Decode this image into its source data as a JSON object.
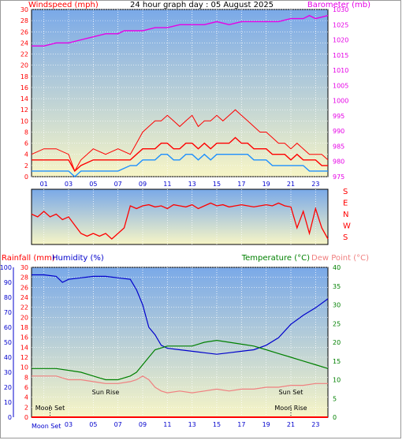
{
  "title": "24 hour graph day : 05 August 2025",
  "colors": {
    "wind": "#ff0000",
    "gust": "#ff0000",
    "windAvg": "#1e90ff",
    "baro": "#e600e6",
    "dir": "#ff0000",
    "rain": "#ff0000",
    "humidity": "#0000cc",
    "temp": "#008000",
    "dew": "#f08080",
    "frame": "#000000",
    "bgTop": "#7aa9e8",
    "bgBottom": "#f7f5c6"
  },
  "hour_labels": [
    "01",
    "03",
    "05",
    "07",
    "09",
    "11",
    "13",
    "15",
    "17",
    "19",
    "21",
    "23"
  ],
  "chart_data": [
    {
      "type": "line",
      "name": "wind-baro",
      "title": "24 hour graph day : 05 August 2025",
      "ylabel": "Windspeed (mph)",
      "y2label": "Barometer (mb)",
      "ylim": [
        0,
        30
      ],
      "y2lim": [
        975,
        1030
      ],
      "yticks": [
        0,
        2,
        4,
        6,
        8,
        10,
        12,
        14,
        16,
        18,
        20,
        22,
        24,
        26,
        28,
        30
      ],
      "y2ticks": [
        975,
        980,
        985,
        990,
        995,
        1000,
        1005,
        1010,
        1015,
        1020,
        1025,
        1030
      ],
      "xlim": [
        0,
        24
      ],
      "series": [
        {
          "key": "gust",
          "x": [
            0,
            1,
            2,
            3,
            3.5,
            4,
            5,
            6,
            7,
            8,
            8.5,
            9,
            9.5,
            10,
            10.5,
            11,
            11.5,
            12,
            12.5,
            13,
            13.5,
            14,
            14.5,
            15,
            15.5,
            16,
            16.5,
            17,
            17.5,
            18,
            18.5,
            19,
            19.5,
            20,
            20.5,
            21,
            21.5,
            22,
            22.5,
            23,
            23.5,
            24
          ],
          "y": [
            4,
            5,
            5,
            4,
            1,
            3,
            5,
            4,
            5,
            4,
            6,
            8,
            9,
            10,
            10,
            11,
            10,
            9,
            10,
            11,
            9,
            10,
            10,
            11,
            10,
            11,
            12,
            11,
            10,
            9,
            8,
            8,
            7,
            6,
            6,
            5,
            6,
            5,
            4,
            4,
            4,
            3
          ]
        },
        {
          "key": "wind",
          "x": [
            0,
            1,
            2,
            3,
            3.5,
            4,
            5,
            6,
            7,
            8,
            8.5,
            9,
            9.5,
            10,
            10.5,
            11,
            11.5,
            12,
            12.5,
            13,
            13.5,
            14,
            14.5,
            15,
            15.5,
            16,
            16.5,
            17,
            17.5,
            18,
            18.5,
            19,
            19.5,
            20,
            20.5,
            21,
            21.5,
            22,
            22.5,
            23,
            23.5,
            24
          ],
          "y": [
            3,
            3,
            3,
            3,
            1,
            2,
            3,
            3,
            3,
            3,
            4,
            5,
            5,
            5,
            6,
            6,
            5,
            5,
            6,
            6,
            5,
            6,
            5,
            6,
            6,
            6,
            7,
            6,
            6,
            5,
            5,
            5,
            4,
            4,
            4,
            3,
            4,
            3,
            3,
            3,
            2,
            2
          ]
        },
        {
          "key": "windAvg",
          "x": [
            0,
            1,
            2,
            3,
            3.5,
            4,
            5,
            6,
            7,
            8,
            8.5,
            9,
            9.5,
            10,
            10.5,
            11,
            11.5,
            12,
            12.5,
            13,
            13.5,
            14,
            14.5,
            15,
            15.5,
            16,
            16.5,
            17,
            17.5,
            18,
            18.5,
            19,
            19.5,
            20,
            20.5,
            21,
            21.5,
            22,
            22.5,
            23,
            23.5,
            24
          ],
          "y": [
            1,
            1,
            1,
            1,
            0,
            1,
            1,
            1,
            1,
            2,
            2,
            3,
            3,
            3,
            4,
            4,
            3,
            3,
            4,
            4,
            3,
            4,
            3,
            4,
            4,
            4,
            4,
            4,
            4,
            3,
            3,
            3,
            2,
            2,
            2,
            2,
            2,
            2,
            1,
            1,
            1,
            1
          ]
        },
        {
          "key": "baro",
          "axis": "y2",
          "x": [
            0,
            1,
            2,
            3,
            4,
            5,
            6,
            7,
            7.5,
            8,
            9,
            10,
            11,
            12,
            13,
            14,
            15,
            16,
            17,
            18,
            19,
            20,
            21,
            22,
            22.5,
            23,
            24
          ],
          "y": [
            1018,
            1018,
            1019,
            1019,
            1020,
            1021,
            1022,
            1022,
            1023,
            1023,
            1023,
            1024,
            1024,
            1025,
            1025,
            1025,
            1026,
            1025,
            1026,
            1026,
            1026,
            1026,
            1027,
            1027,
            1028,
            1027,
            1028
          ]
        }
      ]
    },
    {
      "type": "line",
      "name": "wind-direction",
      "ylabels": [
        "S",
        "E",
        "N",
        "W",
        "S"
      ],
      "xlim": [
        0,
        24
      ],
      "series": [
        {
          "key": "dir",
          "x": [
            0,
            0.5,
            1,
            1.5,
            2,
            2.5,
            3,
            3.5,
            4,
            4.5,
            5,
            5.5,
            6,
            6.5,
            7,
            7.5,
            8,
            8.5,
            9,
            9.5,
            10,
            10.5,
            11,
            11.5,
            12,
            12.5,
            13,
            13.5,
            14,
            14.5,
            15,
            15.5,
            16,
            16.5,
            17,
            17.5,
            18,
            18.5,
            19,
            19.5,
            20,
            20.5,
            21,
            21.5,
            22,
            22.5,
            23,
            23.5,
            24
          ],
          "y": [
            0.55,
            0.5,
            0.6,
            0.5,
            0.55,
            0.45,
            0.5,
            0.35,
            0.2,
            0.15,
            0.2,
            0.15,
            0.2,
            0.1,
            0.2,
            0.3,
            0.7,
            0.65,
            0.7,
            0.72,
            0.68,
            0.7,
            0.65,
            0.72,
            0.7,
            0.68,
            0.72,
            0.65,
            0.7,
            0.75,
            0.7,
            0.72,
            0.68,
            0.7,
            0.72,
            0.7,
            0.68,
            0.7,
            0.72,
            0.7,
            0.75,
            0.7,
            0.68,
            0.3,
            0.6,
            0.2,
            0.65,
            0.3,
            0.1
          ]
        }
      ]
    },
    {
      "type": "line",
      "name": "rain-humidity-temp",
      "ylabel": "Rainfall (mm)",
      "y2label": "Humidity (%)",
      "y3label": "Temperature (°C)",
      "y4label": "Dew Point (°C)",
      "ylim": [
        0,
        30
      ],
      "y2lim": [
        0,
        100
      ],
      "y3lim": [
        0,
        40
      ],
      "yticks": [
        0,
        2,
        4,
        6,
        8,
        10,
        12,
        14,
        16,
        18,
        20,
        22,
        24,
        26,
        28,
        30
      ],
      "y2ticks": [
        0,
        10,
        20,
        30,
        40,
        50,
        60,
        70,
        80,
        90,
        100
      ],
      "y3ticks": [
        0,
        5,
        10,
        15,
        20,
        25,
        30,
        35,
        40
      ],
      "xlim": [
        0,
        24
      ],
      "series": [
        {
          "key": "humidity",
          "axis": "y2",
          "x": [
            0,
            1,
            2,
            2.5,
            3,
            4,
            5,
            6,
            7,
            8,
            8.5,
            9,
            9.5,
            10,
            10.5,
            11,
            12,
            13,
            14,
            15,
            16,
            17,
            18,
            19,
            20,
            21,
            22,
            23,
            24
          ],
          "y": [
            95,
            95,
            94,
            90,
            92,
            93,
            94,
            94,
            93,
            92,
            85,
            75,
            60,
            55,
            48,
            46,
            45,
            44,
            43,
            42,
            43,
            44,
            45,
            48,
            53,
            62,
            68,
            73,
            79
          ]
        },
        {
          "key": "temp",
          "axis": "y3",
          "x": [
            0,
            1,
            2,
            3,
            4,
            5,
            6,
            7,
            8,
            8.5,
            9,
            9.5,
            10,
            11,
            12,
            13,
            14,
            15,
            16,
            17,
            18,
            19,
            20,
            21,
            22,
            23,
            24
          ],
          "y": [
            13,
            13,
            13,
            12.5,
            12,
            11,
            10,
            10,
            11,
            12,
            14,
            16,
            18,
            19,
            19,
            19,
            20,
            20.5,
            20,
            19.5,
            19,
            18,
            17,
            16,
            15,
            14,
            13
          ]
        },
        {
          "key": "dew",
          "axis": "y3",
          "x": [
            0,
            1,
            2,
            3,
            4,
            5,
            6,
            7,
            8,
            8.5,
            9,
            9.5,
            10,
            10.5,
            11,
            12,
            13,
            14,
            15,
            16,
            17,
            18,
            19,
            20,
            21,
            22,
            23,
            24
          ],
          "y": [
            11,
            11,
            11,
            10,
            10,
            9.5,
            9,
            9,
            9.5,
            10,
            11,
            10,
            8,
            7,
            6.5,
            7,
            6.5,
            7,
            7.5,
            7,
            7.5,
            7.5,
            8,
            8,
            8.5,
            8.5,
            9,
            9
          ]
        },
        {
          "key": "rain",
          "x": [
            0,
            24
          ],
          "y": [
            0,
            0
          ]
        }
      ],
      "annotations": [
        {
          "label": "Moon Set",
          "x": 1.5,
          "row": "low"
        },
        {
          "label": "Sun Rise",
          "x": 6,
          "row": "mid"
        },
        {
          "label": "Moon Rise",
          "x": 21,
          "row": "low"
        },
        {
          "label": "Sun Set",
          "x": 21,
          "row": "mid"
        }
      ]
    }
  ],
  "labels": {
    "windspeed": "Windspeed (mph)",
    "barometer": "Barometer (mb)",
    "rainfall": "Rainfall (mm)",
    "humidity": "Humidity (%)",
    "temperature": "Temperature (°C)",
    "dewpoint": "Dew Point (°C)",
    "moonset": "Moon Set",
    "sunrise": "Sun Rise",
    "moonrise": "Moon Rise",
    "sunset": "Sun Set",
    "bottom_left": "Moon Set"
  }
}
